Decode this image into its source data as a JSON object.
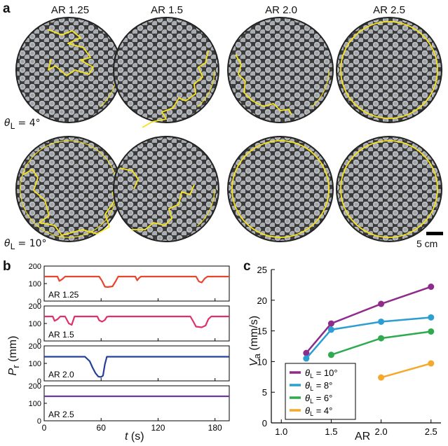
{
  "panel_a": {
    "letter": "a",
    "columns": [
      "AR 1.25",
      "AR 1.5",
      "AR 2.0",
      "AR 2.5"
    ],
    "row_labels": [
      {
        "symbol": "θ",
        "sub": "L",
        "value": " = 4°"
      },
      {
        "symbol": "θ",
        "sub": "L",
        "value": " = 10°"
      }
    ],
    "scale_bar": "5 cm",
    "colors": {
      "trajectory": "#f5e21b",
      "tray": "#3c3c3c",
      "pellet": "#b9bcc0"
    }
  },
  "panel_b": {
    "letter": "b",
    "y_label_symbol": "P",
    "y_label_sub": "r",
    "y_label_unit": " (mm)",
    "x_label_symbol": "t",
    "x_label_unit": " (s)",
    "x_ticks": [
      "0",
      "60",
      "120",
      "180"
    ],
    "y_ticks": [
      "0",
      "100",
      "200"
    ]
  },
  "panel_c": {
    "letter": "c",
    "y_label_symbol": "V",
    "y_label_sub": "a",
    "y_label_unit": " (mm/s)",
    "x_label": "AR",
    "x_ticks": [
      "1.0",
      "1.5",
      "2.0",
      "2.5"
    ],
    "y_ticks": [
      "0",
      "5",
      "10",
      "15",
      "20",
      "25"
    ]
  },
  "chart_data": [
    {
      "type": "line",
      "panel": "b",
      "xlabel": "t (s)",
      "ylabel": "Pr (mm)",
      "xlim": [
        0,
        195
      ],
      "ylim": [
        0,
        200
      ],
      "series": [
        {
          "name": "AR 1.25",
          "color": "#e8452c",
          "x": [
            0,
            14,
            16,
            19,
            22,
            58,
            61,
            64,
            67,
            72,
            75,
            78,
            96,
            98,
            100,
            102,
            160,
            163,
            166,
            169,
            172,
            195
          ],
          "y": [
            140,
            140,
            115,
            125,
            140,
            140,
            115,
            82,
            80,
            84,
            110,
            140,
            140,
            118,
            132,
            140,
            140,
            112,
            106,
            128,
            140,
            140
          ]
        },
        {
          "name": "AR 1.5",
          "color": "#e0306a",
          "x": [
            0,
            9,
            11,
            14,
            17,
            22,
            26,
            29,
            32,
            56,
            58,
            61,
            64,
            66,
            68,
            154,
            157,
            160,
            166,
            170,
            173,
            176,
            195
          ],
          "y": [
            140,
            140,
            115,
            124,
            140,
            140,
            100,
            92,
            140,
            140,
            118,
            110,
            120,
            138,
            140,
            140,
            112,
            82,
            78,
            88,
            125,
            140,
            140
          ]
        },
        {
          "name": "AR 2.0",
          "color": "#24409a",
          "x": [
            0,
            43,
            48,
            51,
            54,
            57,
            60,
            62,
            64,
            66,
            195
          ],
          "y": [
            138,
            138,
            112,
            76,
            45,
            25,
            22,
            30,
            95,
            138,
            138
          ]
        },
        {
          "name": "AR 2.5",
          "color": "#6a3aa0",
          "x": [
            0,
            195
          ],
          "y": [
            140,
            140
          ]
        }
      ]
    },
    {
      "type": "line",
      "panel": "c",
      "xlabel": "AR",
      "ylabel": "Va (mm/s)",
      "xlim": [
        0.9,
        2.6
      ],
      "ylim": [
        0,
        25
      ],
      "categories": [
        1.25,
        1.5,
        2.0,
        2.5
      ],
      "series": [
        {
          "name": "θL = 10°",
          "color": "#8e2b8b",
          "x": [
            1.25,
            1.5,
            2.0,
            2.5
          ],
          "y": [
            11.4,
            16.2,
            19.4,
            22.2
          ]
        },
        {
          "name": "θL = 8°",
          "color": "#2c9ed1",
          "x": [
            1.25,
            1.5,
            2.0,
            2.5
          ],
          "y": [
            10.5,
            15.2,
            16.5,
            17.2
          ]
        },
        {
          "name": "θL = 6°",
          "color": "#2faa4e",
          "x": [
            1.5,
            2.0,
            2.5
          ],
          "y": [
            11.1,
            13.8,
            14.9
          ]
        },
        {
          "name": "θL = 4°",
          "color": "#f4a82c",
          "x": [
            2.0,
            2.5
          ],
          "y": [
            7.4,
            9.7
          ]
        }
      ],
      "legend": [
        {
          "symbol": "θ",
          "sub": "L",
          "value": " = 10°",
          "color": "#8e2b8b"
        },
        {
          "symbol": "θ",
          "sub": "L",
          "value": " = 8°",
          "color": "#2c9ed1"
        },
        {
          "symbol": "θ",
          "sub": "L",
          "value": " = 6°",
          "color": "#2faa4e"
        },
        {
          "symbol": "θ",
          "sub": "L",
          "value": " = 4°",
          "color": "#f4a82c"
        }
      ],
      "legend_position": "bottom-right"
    }
  ]
}
